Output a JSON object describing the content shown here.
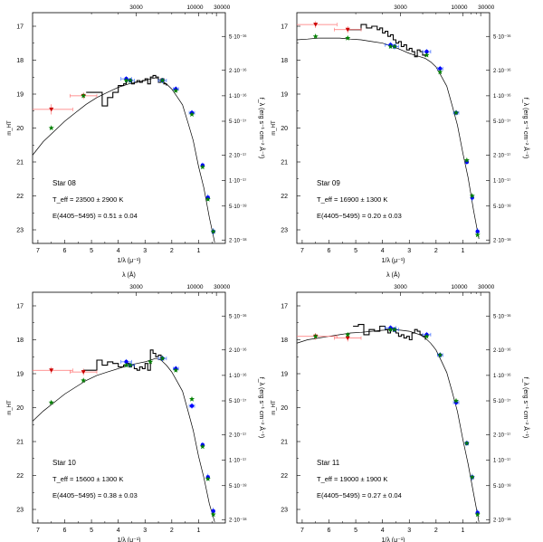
{
  "figure": {
    "top_axis_label": "λ (Å)",
    "bottom_axis_label": "1/λ (μ⁻¹)",
    "left_axis_label": "m_HT",
    "right_axis_label": "f_λ (erg s⁻¹ cm⁻² Å⁻¹)",
    "top_tick_labels": [
      "3000",
      "10000",
      "30000"
    ],
    "colors": {
      "filter_point": "#0000ff",
      "filter_xbar": "#3060ff",
      "model_point": "#008000",
      "uv_point": "#cc0000",
      "uv_xbar": "#ff7070",
      "model_curve": "#000000"
    }
  },
  "chart_data": [
    {
      "type": "scatter",
      "title": "Star 08",
      "teff_text": "T_eff = 23500 ± 2900 K",
      "ebv_text": "E(4405−5495) = 0.51 ± 0.04",
      "xlabel": "1/λ (μ⁻¹)",
      "ylabel": "m_HT",
      "xlim": [
        7.2,
        0.0
      ],
      "ylim": [
        23.4,
        16.6
      ],
      "x_ticks": [
        7,
        6,
        5,
        4,
        3,
        2,
        1
      ],
      "y_ticks": [
        17,
        18,
        19,
        20,
        21,
        22,
        23
      ],
      "right_tick_labels": [
        "5·10⁻¹⁶",
        "2·10⁻¹⁶",
        "1·10⁻¹⁶",
        "5·10⁻¹⁷",
        "2·10⁻¹⁷",
        "1·10⁻¹⁷",
        "5·10⁻¹⁸",
        "2·10⁻¹⁸"
      ],
      "series": [
        {
          "name": "model SED",
          "kind": "line",
          "x": [
            7.2,
            6.8,
            6.4,
            6.0,
            5.6,
            5.2,
            4.8,
            4.4,
            4.0,
            3.6,
            3.3,
            3.0,
            2.8,
            2.6,
            2.4,
            2.2,
            2.0,
            1.8,
            1.6,
            1.4,
            1.2,
            1.0,
            0.8,
            0.6,
            0.4
          ],
          "y": [
            20.8,
            20.4,
            20.1,
            19.8,
            19.55,
            19.3,
            19.1,
            18.95,
            18.8,
            18.7,
            18.65,
            18.6,
            18.55,
            18.52,
            18.6,
            18.7,
            18.85,
            19.05,
            19.35,
            19.8,
            20.4,
            21.1,
            21.8,
            22.6,
            23.4
          ]
        },
        {
          "name": "observed spectrum",
          "kind": "step",
          "x": [
            5.2,
            4.8,
            4.6,
            4.4,
            4.2,
            4.0,
            3.8,
            3.7,
            3.6,
            3.5,
            3.4,
            3.3,
            3.2,
            3.1,
            3.0,
            2.9,
            2.8,
            2.7,
            2.6,
            2.5,
            2.4,
            2.3,
            2.2
          ],
          "y": [
            18.95,
            18.95,
            19.35,
            19.1,
            18.95,
            18.75,
            18.7,
            18.6,
            18.6,
            18.7,
            18.65,
            18.6,
            18.65,
            18.6,
            18.55,
            18.7,
            18.5,
            18.45,
            18.5,
            18.65,
            18.55,
            18.7,
            18.75
          ]
        },
        {
          "name": "UV photometry",
          "kind": "uv",
          "x": [
            6.5,
            5.3
          ],
          "y": [
            19.45,
            19.05
          ],
          "xerr": [
            0.8,
            0.5
          ],
          "yerr": [
            0.15,
            0.1
          ]
        },
        {
          "name": "HST photometry",
          "kind": "filter",
          "x": [
            3.7,
            3.55,
            2.35,
            1.85,
            1.25,
            0.85,
            0.65,
            0.45
          ],
          "y": [
            18.55,
            18.6,
            18.6,
            18.85,
            19.55,
            21.1,
            22.05,
            23.05
          ],
          "xerr": [
            0.2,
            0.15,
            0.15,
            0.1,
            0.1,
            0.05,
            0.05,
            0.05
          ],
          "yerr": [
            0.08,
            0.08,
            0.08,
            0.08,
            0.08,
            0.08,
            0.1,
            0.1
          ]
        },
        {
          "name": "model photometry",
          "kind": "model",
          "x": [
            6.5,
            5.3,
            3.7,
            3.55,
            2.35,
            1.85,
            1.25,
            0.85,
            0.65,
            0.45
          ],
          "y": [
            20.0,
            19.05,
            18.6,
            18.6,
            18.6,
            18.9,
            19.6,
            21.15,
            22.1,
            23.05
          ]
        }
      ]
    },
    {
      "type": "scatter",
      "title": "Star 09",
      "teff_text": "T_eff = 16900 ± 1300 K",
      "ebv_text": "E(4405−5495) = 0.20 ± 0.03",
      "xlabel": "1/λ (μ⁻¹)",
      "ylabel": "m_HT",
      "xlim": [
        7.2,
        0.0
      ],
      "ylim": [
        23.4,
        16.6
      ],
      "x_ticks": [
        7,
        6,
        5,
        4,
        3,
        2,
        1
      ],
      "y_ticks": [
        17,
        18,
        19,
        20,
        21,
        22,
        23
      ],
      "right_tick_labels": [
        "5·10⁻¹⁶",
        "2·10⁻¹⁶",
        "1·10⁻¹⁶",
        "5·10⁻¹⁷",
        "2·10⁻¹⁷",
        "1·10⁻¹⁷",
        "5·10⁻¹⁸",
        "2·10⁻¹⁸"
      ],
      "series": [
        {
          "name": "model SED",
          "kind": "line",
          "x": [
            7.2,
            6.8,
            6.4,
            6.0,
            5.6,
            5.2,
            4.8,
            4.4,
            4.0,
            3.6,
            3.3,
            3.0,
            2.8,
            2.6,
            2.4,
            2.2,
            2.0,
            1.8,
            1.6,
            1.4,
            1.2,
            1.0,
            0.8,
            0.6,
            0.4
          ],
          "y": [
            17.4,
            17.38,
            17.35,
            17.35,
            17.35,
            17.38,
            17.4,
            17.45,
            17.5,
            17.6,
            17.7,
            17.8,
            17.85,
            17.9,
            17.95,
            18.05,
            18.2,
            18.45,
            18.8,
            19.3,
            19.95,
            20.7,
            21.5,
            22.4,
            23.3
          ]
        },
        {
          "name": "observed spectrum",
          "kind": "step",
          "x": [
            5.3,
            5.0,
            4.8,
            4.6,
            4.4,
            4.2,
            4.1,
            4.0,
            3.9,
            3.8,
            3.7,
            3.6,
            3.5,
            3.4,
            3.3,
            3.2,
            3.1,
            3.0,
            2.9,
            2.8,
            2.7,
            2.6,
            2.5,
            2.4
          ],
          "y": [
            17.1,
            17.1,
            16.95,
            17.05,
            17.0,
            17.1,
            17.05,
            17.2,
            17.15,
            17.3,
            17.25,
            17.4,
            17.5,
            17.45,
            17.6,
            17.55,
            17.7,
            17.65,
            17.75,
            17.9,
            17.7,
            17.75,
            17.85,
            17.9
          ]
        },
        {
          "name": "UV photometry",
          "kind": "uv",
          "x": [
            6.5,
            5.3
          ],
          "y": [
            16.95,
            17.1
          ],
          "xerr": [
            0.8,
            0.5
          ],
          "yerr": [
            0.1,
            0.1
          ]
        },
        {
          "name": "HST photometry",
          "kind": "filter",
          "x": [
            3.7,
            3.55,
            2.35,
            1.85,
            1.25,
            0.85,
            0.65,
            0.45
          ],
          "y": [
            17.55,
            17.6,
            17.75,
            18.25,
            19.55,
            21.0,
            22.05,
            23.05
          ],
          "xerr": [
            0.2,
            0.15,
            0.15,
            0.1,
            0.1,
            0.05,
            0.05,
            0.05
          ],
          "yerr": [
            0.08,
            0.08,
            0.08,
            0.08,
            0.08,
            0.08,
            0.1,
            0.1
          ]
        },
        {
          "name": "model photometry",
          "kind": "model",
          "x": [
            6.5,
            5.3,
            3.7,
            3.55,
            2.35,
            1.85,
            1.25,
            0.85,
            0.65,
            0.45
          ],
          "y": [
            17.3,
            17.35,
            17.6,
            17.6,
            17.85,
            18.35,
            19.55,
            20.95,
            22.0,
            23.15
          ]
        }
      ]
    },
    {
      "type": "scatter",
      "title": "Star 10",
      "teff_text": "T_eff = 15600 ± 1300 K",
      "ebv_text": "E(4405−5495) = 0.38 ± 0.03",
      "xlabel": "1/λ (μ⁻¹)",
      "ylabel": "m_HT",
      "xlim": [
        7.2,
        0.0
      ],
      "ylim": [
        23.4,
        16.6
      ],
      "x_ticks": [
        7,
        6,
        5,
        4,
        3,
        2,
        1
      ],
      "y_ticks": [
        17,
        18,
        19,
        20,
        21,
        22,
        23
      ],
      "right_tick_labels": [
        "5·10⁻¹⁶",
        "2·10⁻¹⁶",
        "1·10⁻¹⁶",
        "5·10⁻¹⁷",
        "2·10⁻¹⁷",
        "1·10⁻¹⁷",
        "5·10⁻¹⁸",
        "2·10⁻¹⁸"
      ],
      "series": [
        {
          "name": "model SED",
          "kind": "line",
          "x": [
            7.2,
            6.8,
            6.4,
            6.0,
            5.6,
            5.2,
            4.8,
            4.4,
            4.0,
            3.6,
            3.3,
            3.0,
            2.8,
            2.6,
            2.4,
            2.2,
            2.0,
            1.8,
            1.6,
            1.4,
            1.2,
            1.0,
            0.8,
            0.6,
            0.4
          ],
          "y": [
            20.4,
            20.1,
            19.85,
            19.6,
            19.4,
            19.2,
            19.05,
            18.95,
            18.85,
            18.75,
            18.7,
            18.65,
            18.6,
            18.55,
            18.6,
            18.75,
            18.95,
            19.2,
            19.55,
            20.05,
            20.7,
            21.4,
            22.1,
            22.8,
            23.4
          ]
        },
        {
          "name": "observed spectrum",
          "kind": "step",
          "x": [
            5.3,
            5.0,
            4.8,
            4.6,
            4.4,
            4.2,
            4.0,
            3.8,
            3.7,
            3.6,
            3.5,
            3.4,
            3.3,
            3.2,
            3.1,
            3.0,
            2.9,
            2.8,
            2.7,
            2.6,
            2.5,
            2.4
          ],
          "y": [
            18.9,
            18.9,
            18.6,
            18.75,
            18.65,
            18.7,
            18.8,
            18.75,
            18.7,
            18.8,
            18.75,
            18.85,
            18.9,
            18.8,
            18.85,
            18.7,
            18.9,
            18.3,
            18.4,
            18.5,
            18.45,
            18.6
          ]
        },
        {
          "name": "UV photometry",
          "kind": "uv",
          "x": [
            6.5,
            5.3
          ],
          "y": [
            18.9,
            18.95
          ],
          "xerr": [
            0.8,
            0.5
          ],
          "yerr": [
            0.1,
            0.1
          ]
        },
        {
          "name": "HST photometry",
          "kind": "filter",
          "x": [
            3.7,
            3.55,
            2.35,
            1.85,
            1.25,
            0.85,
            0.65,
            0.45
          ],
          "y": [
            18.65,
            18.75,
            18.55,
            18.85,
            19.95,
            21.1,
            22.05,
            23.05
          ],
          "xerr": [
            0.2,
            0.15,
            0.15,
            0.1,
            0.1,
            0.05,
            0.05,
            0.05
          ],
          "yerr": [
            0.08,
            0.08,
            0.08,
            0.08,
            0.08,
            0.08,
            0.1,
            0.1
          ]
        },
        {
          "name": "model photometry",
          "kind": "model",
          "x": [
            6.5,
            5.3,
            3.7,
            3.55,
            2.8,
            2.35,
            1.85,
            1.25,
            0.85,
            0.65,
            0.45
          ],
          "y": [
            19.85,
            19.2,
            18.75,
            18.75,
            18.65,
            18.55,
            18.9,
            19.75,
            21.15,
            22.1,
            23.15
          ]
        }
      ]
    },
    {
      "type": "scatter",
      "title": "Star 11",
      "teff_text": "T_eff = 19000 ± 1900 K",
      "ebv_text": "E(4405−5495) = 0.27 ± 0.04",
      "xlabel": "1/λ (μ⁻¹)",
      "ylabel": "m_HT",
      "xlim": [
        7.2,
        0.0
      ],
      "ylim": [
        23.4,
        16.6
      ],
      "x_ticks": [
        7,
        6,
        5,
        4,
        3,
        2,
        1
      ],
      "y_ticks": [
        17,
        18,
        19,
        20,
        21,
        22,
        23
      ],
      "right_tick_labels": [
        "5·10⁻¹⁶",
        "2·10⁻¹⁶",
        "1·10⁻¹⁶",
        "5·10⁻¹⁷",
        "2·10⁻¹⁷",
        "1·10⁻¹⁷",
        "5·10⁻¹⁸",
        "2·10⁻¹⁸"
      ],
      "series": [
        {
          "name": "model SED",
          "kind": "line",
          "x": [
            7.2,
            6.8,
            6.4,
            6.0,
            5.6,
            5.2,
            4.8,
            4.4,
            4.0,
            3.6,
            3.3,
            3.0,
            2.8,
            2.6,
            2.4,
            2.2,
            2.0,
            1.8,
            1.6,
            1.4,
            1.2,
            1.0,
            0.8,
            0.6,
            0.4
          ],
          "y": [
            18.1,
            18.0,
            17.95,
            17.9,
            17.85,
            17.8,
            17.78,
            17.75,
            17.72,
            17.7,
            17.72,
            17.75,
            17.8,
            17.85,
            17.95,
            18.1,
            18.3,
            18.6,
            19.0,
            19.5,
            20.15,
            20.9,
            21.7,
            22.5,
            23.4
          ]
        },
        {
          "name": "observed spectrum",
          "kind": "step",
          "x": [
            5.1,
            4.9,
            4.7,
            4.5,
            4.3,
            4.1,
            3.9,
            3.8,
            3.7,
            3.6,
            3.5,
            3.4,
            3.3,
            3.2,
            3.1,
            3.0,
            2.9,
            2.8,
            2.7,
            2.6,
            2.5,
            2.4
          ],
          "y": [
            17.6,
            17.55,
            17.85,
            17.7,
            17.75,
            17.6,
            17.7,
            17.8,
            17.65,
            17.75,
            17.8,
            17.9,
            17.85,
            17.95,
            17.9,
            18.0,
            17.8,
            17.7,
            17.75,
            17.85,
            17.9,
            18.0
          ]
        },
        {
          "name": "UV photometry",
          "kind": "uv",
          "x": [
            6.5,
            5.3
          ],
          "y": [
            17.9,
            17.95
          ],
          "xerr": [
            0.8,
            0.5
          ],
          "yerr": [
            0.1,
            0.1
          ]
        },
        {
          "name": "HST photometry",
          "kind": "filter",
          "x": [
            3.7,
            3.55,
            2.35,
            1.85,
            1.25,
            0.85,
            0.65,
            0.45
          ],
          "y": [
            17.65,
            17.7,
            17.85,
            18.45,
            19.85,
            21.05,
            22.05,
            23.1
          ],
          "xerr": [
            0.2,
            0.15,
            0.15,
            0.1,
            0.1,
            0.05,
            0.05,
            0.05
          ],
          "yerr": [
            0.08,
            0.08,
            0.08,
            0.08,
            0.08,
            0.08,
            0.1,
            0.1
          ]
        },
        {
          "name": "model photometry",
          "kind": "model",
          "x": [
            6.5,
            5.3,
            3.7,
            3.55,
            2.35,
            1.85,
            1.25,
            0.85,
            0.65,
            0.45
          ],
          "y": [
            17.9,
            17.85,
            17.7,
            17.7,
            17.9,
            18.45,
            19.8,
            21.05,
            22.05,
            23.15
          ]
        }
      ]
    }
  ]
}
